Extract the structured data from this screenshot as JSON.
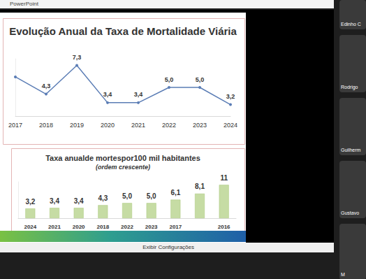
{
  "window": {
    "title": "PowerPoint",
    "status": "Exibir Configurações"
  },
  "participants": [
    "Edinho C",
    "Rodrigo",
    "Guilherm",
    "Gustavo",
    "M"
  ],
  "chart_data": [
    {
      "type": "line",
      "title": "Evolução Anual da Taxa de Mortalidade Viária",
      "categories": [
        "2017",
        "2018",
        "2019",
        "2020",
        "2021",
        "2022",
        "2023",
        "2024"
      ],
      "values": [
        6.1,
        4.3,
        7.3,
        3.4,
        3.4,
        5.0,
        5.0,
        3.2
      ],
      "value_labels": [
        null,
        "4,3",
        "7,3",
        "3,4",
        "3,4",
        "5,0",
        "5,0",
        "3,2"
      ],
      "color": "#5b7db5",
      "ylim": [
        2,
        8
      ],
      "tick_labels": "x",
      "data_labels": true,
      "grid": false,
      "marker": "circle"
    },
    {
      "type": "bar",
      "title": "Taxa anualde mortespor100 mil habitantes",
      "subtitle": "(ordem crescente)",
      "categories": [
        "2024",
        "2021",
        "2020",
        "2018",
        "2022",
        "2023",
        "2017",
        null,
        "2016"
      ],
      "values": [
        3.2,
        3.4,
        3.4,
        4.3,
        5.0,
        5.0,
        6.1,
        8.1,
        11
      ],
      "value_labels": [
        "3,2",
        "3,4",
        "3,4",
        "4,3",
        "5,0",
        "5,0",
        "6,1",
        "8,1",
        "11"
      ],
      "color": "#c6dca4",
      "ylim": [
        0,
        12
      ],
      "tick_labels": "x",
      "data_labels": true,
      "grid": false
    }
  ]
}
